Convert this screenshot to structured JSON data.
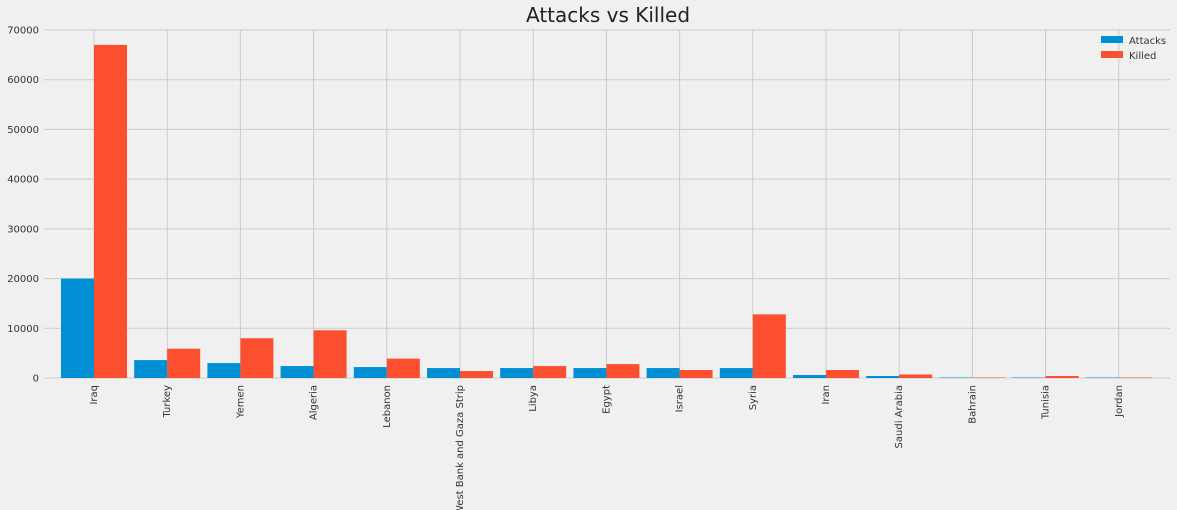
{
  "chart_data": {
    "type": "bar",
    "title": "Attacks vs Killed",
    "xlabel": "",
    "ylabel": "",
    "categories": [
      "Iraq",
      "Turkey",
      "Yemen",
      "Algeria",
      "Lebanon",
      "West Bank and Gaza Strip",
      "Libya",
      "Egypt",
      "Israel",
      "Syria",
      "Iran",
      "Saudi Arabia",
      "Bahrain",
      "Tunisia",
      "Jordan"
    ],
    "series": [
      {
        "name": "Attacks",
        "color": "#008fd5",
        "values": [
          20000,
          3600,
          3000,
          2400,
          2200,
          2000,
          2000,
          2000,
          2000,
          2000,
          600,
          400,
          100,
          100,
          100
        ]
      },
      {
        "name": "Killed",
        "color": "#fc4f30",
        "values": [
          67000,
          5900,
          8000,
          9600,
          3900,
          1400,
          2400,
          2800,
          1600,
          12800,
          1600,
          700,
          100,
          400,
          100
        ]
      }
    ],
    "ylim": [
      0,
      70000
    ],
    "yticks": [
      0,
      10000,
      20000,
      30000,
      40000,
      50000,
      60000,
      70000
    ],
    "grid": true,
    "legend_position": "top-right"
  }
}
